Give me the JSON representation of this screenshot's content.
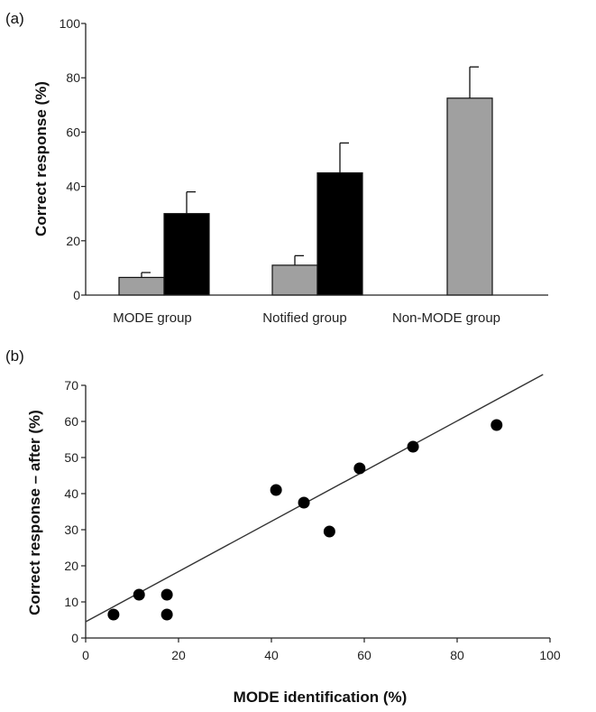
{
  "chart_data": [
    {
      "panel_label": "(a)",
      "type": "bar",
      "categories": [
        "MODE group",
        "Notified group",
        "Non-MODE group"
      ],
      "series": [
        {
          "name": "",
          "color": "#a0a0a0",
          "values": [
            6.5,
            11,
            72.5
          ],
          "errors": [
            1.8,
            3.5,
            11.5
          ]
        },
        {
          "name": "",
          "color": "#000000",
          "values": [
            30,
            45,
            null
          ],
          "errors": [
            8,
            11,
            null
          ]
        }
      ],
      "ylabel": "Correct response (%)",
      "ylim": [
        0,
        100
      ],
      "yticks": [
        0,
        20,
        40,
        60,
        80,
        100
      ]
    },
    {
      "panel_label": "(b)",
      "type": "scatter",
      "points": [
        {
          "x": 6,
          "y": 6.5
        },
        {
          "x": 11.5,
          "y": 12
        },
        {
          "x": 17.5,
          "y": 12
        },
        {
          "x": 17.5,
          "y": 6.5
        },
        {
          "x": 41,
          "y": 41
        },
        {
          "x": 47,
          "y": 37.5
        },
        {
          "x": 52.5,
          "y": 29.5
        },
        {
          "x": 59,
          "y": 47
        },
        {
          "x": 70.5,
          "y": 53
        },
        {
          "x": 88.5,
          "y": 59
        }
      ],
      "trendline": {
        "x": [
          0,
          98.5
        ],
        "y": [
          4.5,
          73
        ]
      },
      "xlabel": "MODE identification (%)",
      "ylabel": "Correct response – after (%)",
      "xlim": [
        0,
        100
      ],
      "ylim": [
        0,
        70
      ],
      "xticks": [
        0,
        20,
        40,
        60,
        80,
        100
      ],
      "yticks": [
        0,
        10,
        20,
        30,
        40,
        50,
        60,
        70
      ]
    }
  ]
}
